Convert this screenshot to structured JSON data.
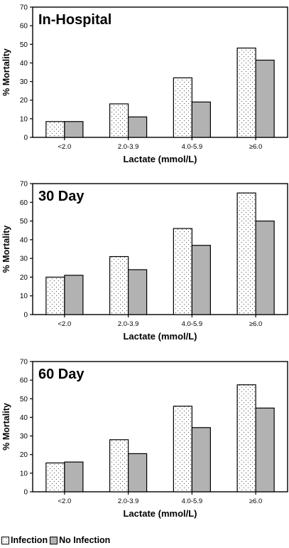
{
  "page": {
    "background": "#ffffff"
  },
  "legend": {
    "items": [
      {
        "label": "Infection",
        "fill": "#ffffff",
        "pattern": "dots"
      },
      {
        "label": "No Infection",
        "fill": "#b2b2b2",
        "pattern": "solid"
      }
    ]
  },
  "chart_data": [
    {
      "type": "bar",
      "title": "In-Hospital",
      "xlabel": "Lactate (mmol/L)",
      "ylabel": "% Mortality",
      "categories": [
        "<2.0",
        "2.0-3.9",
        "4.0-5.9",
        "≥6.0"
      ],
      "yticks": [
        "0",
        "10",
        "20",
        "30",
        "40",
        "50",
        "60",
        "70"
      ],
      "ylim": [
        0,
        70
      ],
      "grid": false,
      "legend_position": "bottom-left",
      "series": [
        {
          "name": "Infection",
          "values": [
            8.5,
            18,
            32,
            48
          ]
        },
        {
          "name": "No Infection",
          "values": [
            8.5,
            11,
            19,
            41.5
          ]
        }
      ]
    },
    {
      "type": "bar",
      "title": "30 Day",
      "xlabel": "Lactate (mmol/L)",
      "ylabel": "% Mortality",
      "categories": [
        "<2.0",
        "2.0-3.9",
        "4.0-5.9",
        "≥6.0"
      ],
      "yticks": [
        "0",
        "10",
        "20",
        "30",
        "40",
        "50",
        "60",
        "70"
      ],
      "ylim": [
        0,
        70
      ],
      "grid": false,
      "legend_position": "bottom-left",
      "series": [
        {
          "name": "Infection",
          "values": [
            20,
            31,
            46,
            65
          ]
        },
        {
          "name": "No Infection",
          "values": [
            21,
            24,
            37,
            50
          ]
        }
      ]
    },
    {
      "type": "bar",
      "title": "60 Day",
      "xlabel": "Lactate (mmol/L)",
      "ylabel": "% Mortality",
      "categories": [
        "<2.0",
        "2.0-3.9",
        "4.0-5.9",
        "≥6.0"
      ],
      "yticks": [
        "0",
        "10",
        "20",
        "30",
        "40",
        "50",
        "60",
        "70"
      ],
      "ylim": [
        0,
        70
      ],
      "grid": false,
      "legend_position": "bottom-left",
      "series": [
        {
          "name": "Infection",
          "values": [
            15.5,
            28,
            46,
            57.5
          ]
        },
        {
          "name": "No Infection",
          "values": [
            16,
            20.5,
            34.5,
            45
          ]
        }
      ]
    }
  ]
}
